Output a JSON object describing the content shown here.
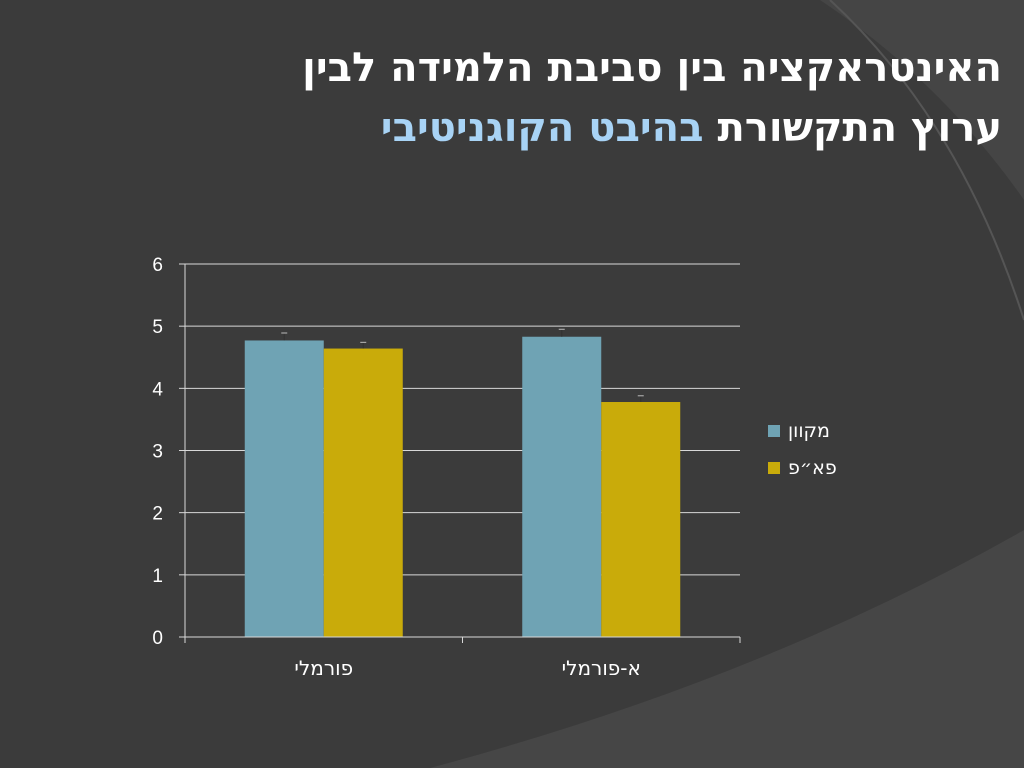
{
  "slide": {
    "title_line1": "האינטראקציה בין סביבת הלמידה לבין",
    "title_line2_plain": "ערוץ התקשורת",
    "title_line2_accent": "בהיבט הקוגניטיבי",
    "colors": {
      "background": "#3b3b3b",
      "accent_text": "#a8d3f5",
      "title_text": "#ffffff"
    }
  },
  "chart_data": {
    "type": "bar",
    "categories": [
      "פורמלי",
      "א-פורמלי"
    ],
    "series": [
      {
        "name": "מקוון",
        "values": [
          4.77,
          4.83
        ],
        "errors": [
          0.12,
          0.12
        ],
        "color": "#6fa3b4"
      },
      {
        "name": "פא״פ",
        "values": [
          4.64,
          3.78
        ],
        "errors": [
          0.1,
          0.1
        ],
        "color": "#c9ab0a"
      }
    ],
    "y_ticks": [
      "0",
      "1",
      "2",
      "3",
      "4",
      "5",
      "6"
    ],
    "ylim": [
      0,
      6
    ],
    "grid": true,
    "legend_position": "right",
    "title": "",
    "xlabel": "",
    "ylabel": ""
  }
}
